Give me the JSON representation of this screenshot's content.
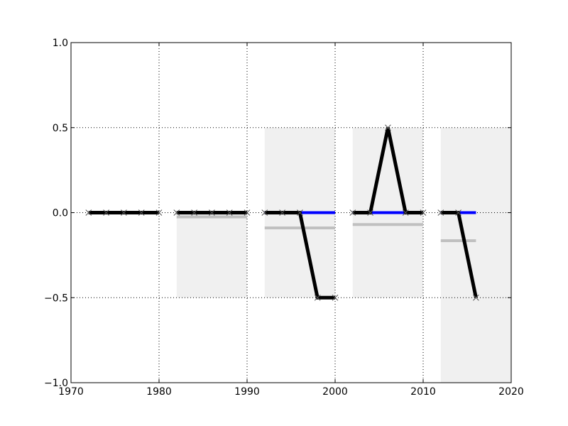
{
  "chart_data": {
    "type": "line",
    "title": "",
    "xlabel": "",
    "ylabel": "",
    "xlim": [
      1970,
      2020
    ],
    "ylim": [
      -1.0,
      1.0
    ],
    "grid": true,
    "x_ticks": [
      1970,
      1980,
      1990,
      2000,
      2010,
      2020
    ],
    "x_tick_labels": [
      "1970",
      "1980",
      "1990",
      "2000",
      "2010",
      "2020"
    ],
    "y_ticks": [
      -1.0,
      -0.5,
      0.0,
      0.5,
      1.0
    ],
    "y_tick_labels": [
      "−1.0",
      "−0.5",
      "0.0",
      "0.5",
      "1.0"
    ],
    "shaded_regions": [
      {
        "x": [
          1982,
          1990
        ],
        "y": [
          -0.5,
          0.0
        ],
        "color": "#f0f0f0"
      },
      {
        "x": [
          1992,
          2000
        ],
        "y": [
          -0.5,
          0.5
        ],
        "color": "#f0f0f0"
      },
      {
        "x": [
          2002,
          2010
        ],
        "y": [
          -0.5,
          0.5
        ],
        "color": "#f0f0f0"
      },
      {
        "x": [
          2012,
          2020
        ],
        "y": [
          -1.0,
          0.5
        ],
        "color": "#f0f0f0"
      }
    ],
    "series": [
      {
        "role": "mean",
        "color": "#c0c0c0",
        "segments": [
          {
            "x": [
              1982,
              1990
            ],
            "y": [
              -0.025,
              -0.025
            ]
          },
          {
            "x": [
              1992,
              2000
            ],
            "y": [
              -0.09,
              -0.09
            ]
          },
          {
            "x": [
              2002,
              2010
            ],
            "y": [
              -0.07,
              -0.07
            ]
          },
          {
            "x": [
              2012,
              2016
            ],
            "y": [
              -0.165,
              -0.165
            ]
          }
        ]
      },
      {
        "role": "baseline",
        "color": "#0000ff",
        "segments": [
          {
            "x": [
              1992,
              2000
            ],
            "y": [
              0,
              0
            ]
          },
          {
            "x": [
              2002,
              2010
            ],
            "y": [
              0,
              0
            ]
          },
          {
            "x": [
              2012,
              2016
            ],
            "y": [
              0,
              0
            ]
          }
        ]
      },
      {
        "role": "values",
        "color": "#000000",
        "marker": "x",
        "segments": [
          {
            "x": [
              1972,
              1974,
              1976,
              1978,
              1980
            ],
            "y": [
              0,
              0,
              0,
              0,
              0
            ]
          },
          {
            "x": [
              1982,
              1984,
              1986,
              1988,
              1990
            ],
            "y": [
              0,
              0,
              0,
              0,
              0
            ]
          },
          {
            "x": [
              1992,
              1994,
              1996,
              1998,
              2000
            ],
            "y": [
              0,
              0,
              0,
              -0.5,
              -0.5
            ]
          },
          {
            "x": [
              2002,
              2004,
              2006,
              2008,
              2010
            ],
            "y": [
              0,
              0,
              0.5,
              0,
              0
            ]
          },
          {
            "x": [
              2012,
              2014,
              2016
            ],
            "y": [
              0,
              0,
              -0.5
            ]
          }
        ]
      }
    ]
  }
}
